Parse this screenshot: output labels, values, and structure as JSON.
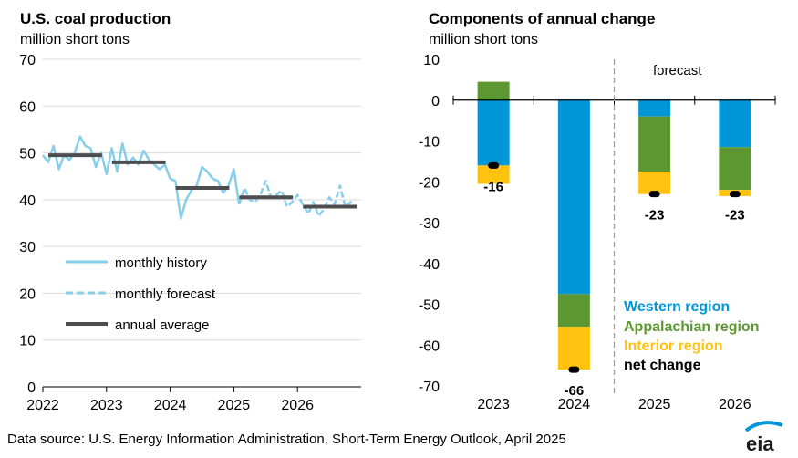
{
  "left": {
    "title": "U.S. coal production",
    "subtitle": "million short tons",
    "legend": [
      "monthly history",
      "monthly forecast",
      "annual average"
    ]
  },
  "right": {
    "title": "Components of annual change",
    "subtitle": "million short tons",
    "forecast_label": "forecast",
    "legend": [
      "Western region",
      "Appalachian region",
      "Interior region",
      "net change"
    ]
  },
  "source": "Data source: U.S. Energy Information Administration, Short-Term Energy Outlook, April 2025",
  "logo": "eia",
  "colors": {
    "history": "#87CEEB",
    "average": "#4D4D4F",
    "western": "#0096D7",
    "appalachian": "#5D9732",
    "interior": "#FFC20E",
    "net": "#000000"
  },
  "chart_data": [
    {
      "type": "line",
      "title": "U.S. coal production",
      "ylabel": "million short tons",
      "ylim": [
        0,
        70
      ],
      "yticks": [
        0,
        10,
        20,
        30,
        40,
        50,
        60,
        70
      ],
      "xticks": [
        "2022",
        "2023",
        "2024",
        "2025",
        "2026"
      ],
      "xlim": [
        2022,
        2027
      ],
      "grid": true,
      "legend_position": "bottom-left",
      "series": [
        {
          "name": "monthly history",
          "style": "solid",
          "x": [
            2022.0,
            2022.083,
            2022.167,
            2022.25,
            2022.333,
            2022.417,
            2022.5,
            2022.583,
            2022.667,
            2022.75,
            2022.833,
            2022.917,
            2023.0,
            2023.083,
            2023.167,
            2023.25,
            2023.333,
            2023.417,
            2023.5,
            2023.583,
            2023.667,
            2023.75,
            2023.833,
            2023.917,
            2024.0,
            2024.083,
            2024.167,
            2024.25,
            2024.333,
            2024.417,
            2024.5,
            2024.583,
            2024.667,
            2024.75,
            2024.833,
            2024.917,
            2025.0,
            2025.083
          ],
          "y": [
            49.5,
            48,
            51.5,
            46.5,
            49.5,
            48.5,
            50,
            53.5,
            51.5,
            51,
            47,
            50,
            45.5,
            51,
            46,
            52,
            47.5,
            49,
            47.5,
            50.5,
            48.5,
            47.5,
            46.5,
            47.5,
            44.5,
            44,
            36,
            40,
            42,
            43,
            47,
            46,
            44.5,
            44,
            41.5,
            43,
            46.5,
            39
          ]
        },
        {
          "name": "monthly forecast",
          "style": "dashed",
          "x": [
            2025.083,
            2025.167,
            2025.25,
            2025.333,
            2025.417,
            2025.5,
            2025.583,
            2025.667,
            2025.75,
            2025.833,
            2025.917,
            2026.0,
            2026.083,
            2026.167,
            2026.25,
            2026.333,
            2026.417,
            2026.5,
            2026.583,
            2026.667,
            2026.75,
            2026.833,
            2026.917
          ],
          "y": [
            39,
            42.5,
            40,
            39.5,
            41,
            44,
            40.5,
            41,
            42,
            38.5,
            39.5,
            41,
            39,
            37,
            39.5,
            36.5,
            38,
            40.5,
            39,
            43,
            38.5,
            39.5,
            38.5
          ]
        },
        {
          "name": "annual average",
          "style": "step",
          "periods": [
            [
              2022,
              2023
            ],
            [
              2023,
              2024
            ],
            [
              2024,
              2025
            ],
            [
              2025,
              2026
            ],
            [
              2026,
              2027
            ]
          ],
          "values": [
            49.5,
            48,
            42.5,
            40.5,
            38.5
          ]
        }
      ]
    },
    {
      "type": "bar",
      "stacked": true,
      "title": "Components of annual change",
      "ylabel": "million short tons",
      "ylim": [
        -70,
        10
      ],
      "yticks": [
        10,
        0,
        -10,
        -20,
        -30,
        -40,
        -50,
        -60,
        -70
      ],
      "categories": [
        "2023",
        "2024",
        "2025",
        "2026"
      ],
      "forecast_from": "2025",
      "legend_position": "bottom-right",
      "series": [
        {
          "name": "Western region",
          "values": [
            -16,
            -47.5,
            -4,
            -11.5
          ]
        },
        {
          "name": "Appalachian region",
          "values": [
            4.5,
            -8,
            -13.5,
            -10.5
          ]
        },
        {
          "name": "Interior region",
          "values": [
            -4.5,
            -10.5,
            -5.5,
            -1.5
          ]
        }
      ],
      "net_change": {
        "name": "net change",
        "values": [
          -16,
          -66,
          -23,
          -23
        ],
        "labels": [
          "-16",
          "-66",
          "-23",
          "-23"
        ]
      }
    }
  ]
}
